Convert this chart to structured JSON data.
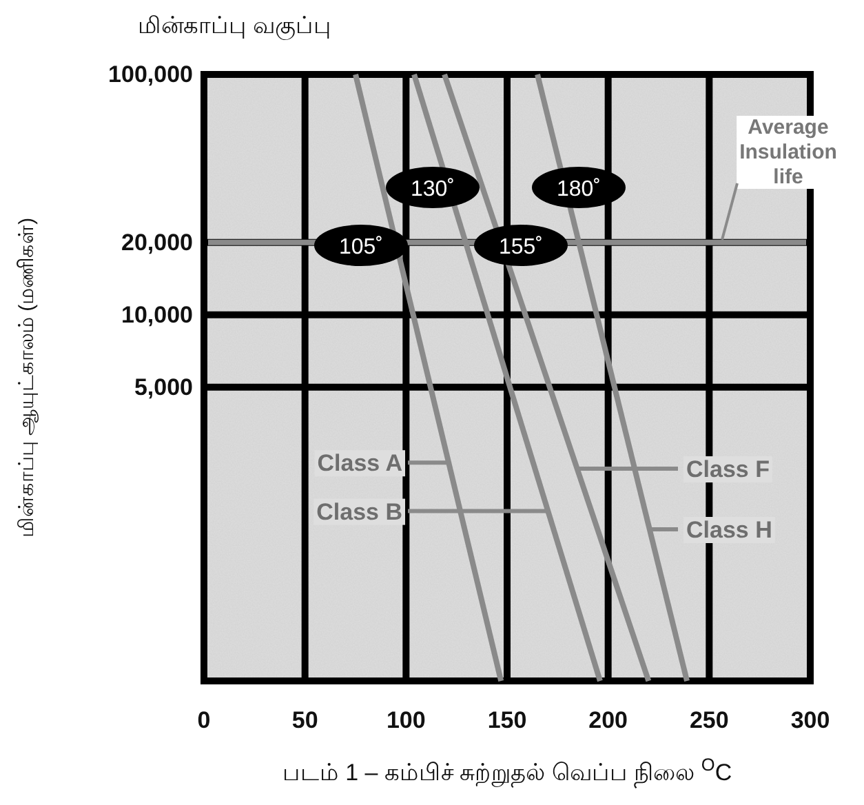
{
  "chart_data": {
    "type": "line",
    "title": "மின்காப்பு வகுப்பு",
    "xlabel": "படம் 1 – கம்பிச் சுற்றுதல் வெப்ப நிலை $^{O}$C",
    "ylabel": "மின்காப்பு  ஆயுட்காலம் (மணிகள்)",
    "series": [
      {
        "name": "Class A",
        "color": "#8a8a8a",
        "x": [
          75,
          147
        ],
        "values": [
          100000,
          300
        ]
      },
      {
        "name": "Class B",
        "color": "#8a8a8a",
        "x": [
          104,
          196
        ],
        "values": [
          100000,
          300
        ]
      },
      {
        "name": "Class F",
        "color": "#8a8a8a",
        "x": [
          119,
          220
        ],
        "values": [
          100000,
          300
        ]
      },
      {
        "name": "Class H",
        "color": "#8a8a8a",
        "x": [
          165,
          239
        ],
        "values": [
          100000,
          300
        ]
      }
    ],
    "xlim": [
      0,
      300
    ],
    "xticks": [
      0,
      50,
      100,
      150,
      200,
      250,
      300
    ],
    "ylim": [
      300,
      100000
    ],
    "log": "y",
    "yticks": [
      {
        "value": 5000,
        "label": "5,000"
      },
      {
        "value": 10000,
        "label": "10,000"
      },
      {
        "value": 20000,
        "label": "20,000"
      },
      {
        "value": 100000,
        "label": "100,000"
      }
    ],
    "ref_lines": [
      {
        "axis": "y",
        "value": 20000,
        "label": "Average Insulation life",
        "color": "#8a8a8a"
      }
    ],
    "annotations": [
      "105˚",
      "130˚",
      "155˚",
      "180˚"
    ],
    "grid": true,
    "legend": "right",
    "marker": "none",
    "line_style": "solid"
  }
}
